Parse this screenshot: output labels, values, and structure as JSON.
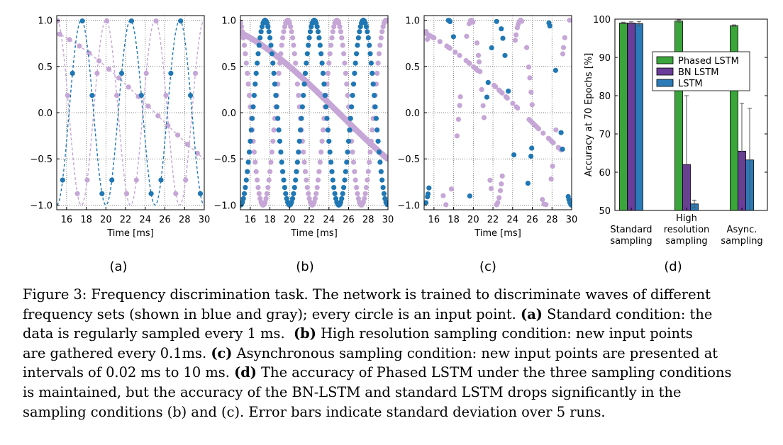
{
  "colors": {
    "blue": "#1f77b4",
    "lilac": "#c5a6d6",
    "phased": "#3aa53a",
    "bn": "#6a3d9a",
    "lstm": "#2b7bb9"
  },
  "chart_data": [
    {
      "type": "scatter",
      "panel": "(a)",
      "xlabel": "Time [ms]",
      "xlim": [
        15,
        30
      ],
      "ylim": [
        -1.05,
        1.05
      ],
      "xticks": [
        "16",
        "18",
        "20",
        "22",
        "24",
        "26",
        "28",
        "30"
      ],
      "yticks": [
        "1.0",
        "0.5",
        "0.0",
        "−0.5",
        "−1.0"
      ],
      "grid": true,
      "sampling_ms": 1,
      "series": [
        {
          "color": "blue",
          "style": "dashed line with circle markers",
          "frequency_khz": 0.2,
          "phase_ms": 17.5
        },
        {
          "color": "lilac",
          "style": "dashed line with circle markers",
          "frequency_khz": 0.2,
          "phase_ms": 20
        },
        {
          "color": "lilac",
          "style": "dashed line with circle markers",
          "frequency_khz": 0.0167,
          "phase_ms": 10
        }
      ]
    },
    {
      "type": "scatter",
      "panel": "(b)",
      "xlabel": "Time [ms]",
      "xlim": [
        15,
        30
      ],
      "ylim": [
        -1.05,
        1.05
      ],
      "xticks": [
        "16",
        "18",
        "20",
        "22",
        "24",
        "26",
        "28",
        "30"
      ],
      "yticks": [
        "1.0",
        "0.5",
        "0.0",
        "−0.5",
        "−1.0"
      ],
      "grid": true,
      "sampling_ms": 0.1,
      "series": [
        {
          "color": "blue",
          "style": "circle markers",
          "frequency_khz": 0.2,
          "phase_ms": 17.5
        },
        {
          "color": "lilac",
          "style": "circle markers",
          "frequency_khz": 0.2,
          "phase_ms": 19.8
        },
        {
          "color": "lilac",
          "style": "circle markers",
          "frequency_khz": 0.0167,
          "phase_ms": 10
        }
      ]
    },
    {
      "type": "scatter",
      "panel": "(c)",
      "xlabel": "Time [ms]",
      "xlim": [
        15,
        30
      ],
      "ylim": [
        -1.05,
        1.05
      ],
      "xticks": [
        "16",
        "18",
        "20",
        "22",
        "24",
        "26",
        "28",
        "30"
      ],
      "yticks": [
        "1.0",
        "0.5",
        "0.0",
        "−0.5",
        "−1.0"
      ],
      "grid": true,
      "sampling_ms": "0.02 to 10 (asynchronous)",
      "series": [
        {
          "color": "blue",
          "style": "circle markers",
          "frequency_khz": 0.2,
          "phase_ms": 17.5
        },
        {
          "color": "lilac",
          "style": "circle markers",
          "frequency_khz": 0.2,
          "phase_ms": 19.8
        },
        {
          "color": "lilac",
          "style": "circle markers",
          "frequency_khz": 0.0167,
          "phase_ms": 10
        }
      ]
    },
    {
      "type": "bar",
      "panel": "(d)",
      "ylabel": "Accuracy at 70 Epochs [%]",
      "ylim": [
        50,
        100
      ],
      "yticks": [
        "50",
        "60",
        "70",
        "80",
        "90",
        "100"
      ],
      "categories": [
        [
          "Standard",
          "sampling"
        ],
        [
          "High",
          "resolution",
          "sampling"
        ],
        [
          "Async.",
          "sampling"
        ]
      ],
      "legend_position": "upper middle",
      "grid": false,
      "series": [
        {
          "name": "Phased LSTM",
          "color": "phased",
          "values": [
            99.0,
            99.5,
            98.3
          ],
          "err": [
            0.2,
            0.3,
            0.2
          ]
        },
        {
          "name": "BN LSTM",
          "color": "bn",
          "values": [
            99.0,
            62.0,
            65.5
          ],
          "err": [
            0.3,
            18.0,
            12.5
          ]
        },
        {
          "name": "LSTM",
          "color": "lstm",
          "values": [
            98.8,
            51.7,
            63.2
          ],
          "err": [
            0.6,
            1.0,
            13.5
          ]
        }
      ]
    }
  ],
  "panel_labels": [
    "(a)",
    "(b)",
    "(c)",
    "(d)"
  ],
  "caption": {
    "lead": "Figure 3: Frequency discrimination task. The network is trained to discriminate waves of different",
    "line2": "frequency sets (shown in blue and gray); every circle is an input point.",
    "a_label": "(a)",
    "a_text": "Standard condition: the",
    "line3_start": "data is regularly sampled every 1 ms.",
    "b_label": "(b)",
    "b_text": "High resolution sampling condition: new input points",
    "line4_start": "are gathered every 0.1ms.",
    "c_label": "(c)",
    "c_text": "Asynchronous sampling condition: new input points are presented at",
    "line5_start": "intervals of 0.02 ms to 10 ms.",
    "d_label": "(d)",
    "d_text": "The accuracy of Phased LSTM under the three sampling conditions",
    "line6": "is maintained, but the accuracy of the BN-LSTM and standard LSTM drops significantly in the",
    "line7": "sampling conditions (b) and (c). Error bars indicate standard deviation over 5 runs."
  }
}
